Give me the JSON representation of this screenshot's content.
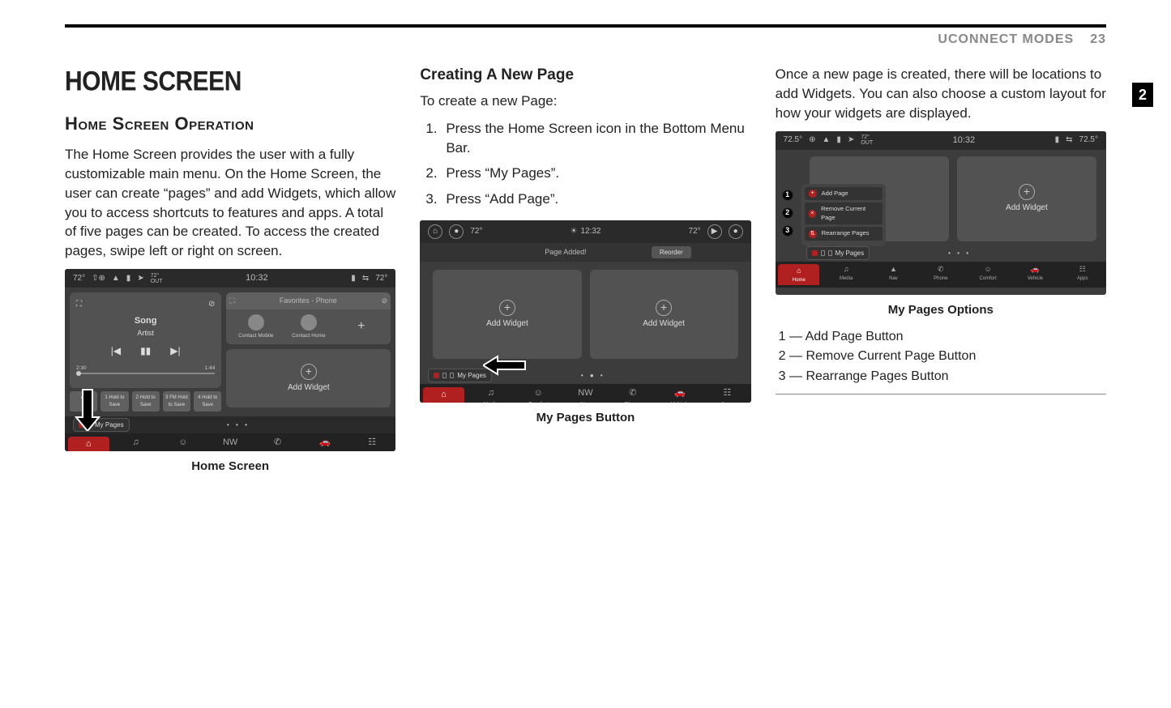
{
  "page": {
    "header_section": "UCONNECT MODES",
    "page_number": "23",
    "tab_number": "2"
  },
  "col1": {
    "title": "HOME SCREEN",
    "subtitle": "Home Screen Operation",
    "para": "The Home Screen provides the user with a fully customizable main menu. On the Home Screen, the user can create “pages” and add Widgets, which allow you to access shortcuts to features and apps. A total of five pages can be created. To access the created pages, swipe left or right on screen.",
    "caption": "Home Screen"
  },
  "col2": {
    "subhead": "Creating A New Page",
    "intro": "To create a new Page:",
    "steps": [
      "Press the Home Screen icon in the Bottom Menu Bar.",
      "Press “My Pages”.",
      "Press “Add Page”."
    ],
    "caption": "My Pages Button"
  },
  "col3": {
    "para": "Once a new page is created, there will be locations to add Widgets. You can also choose a custom layout for how your widgets are displayed.",
    "caption": "My Pages Options",
    "legend": [
      "1 — Add Page Button",
      "2 — Remove Current Page Button",
      "3 — Rearrange Pages Button"
    ]
  },
  "screenshot_common": {
    "temp_left": "72°",
    "temp_right": "72°",
    "temp_out_label": "72°\nOUT",
    "clock": "10:32",
    "clock2": "12:32",
    "add_widget": "Add Widget",
    "my_pages": "My Pages",
    "menu": [
      {
        "icon": "⌂",
        "label": "Home"
      },
      {
        "icon": "♫",
        "label": "Media"
      },
      {
        "icon": "☺",
        "label": "Comfort"
      },
      {
        "icon": "NW",
        "label": "Nav"
      },
      {
        "icon": "✆",
        "label": "Phone"
      },
      {
        "icon": "🚗",
        "label": "Vehicle"
      },
      {
        "icon": "☷",
        "label": "Apps"
      }
    ]
  },
  "ss1": {
    "song": "Song",
    "artist": "Artist",
    "preset_all": "All",
    "presets": [
      "1 Hold to Save",
      "2 Hold to Save",
      "3 FM Hold to Save",
      "4 Hold to Save"
    ],
    "time_l": "2:30",
    "time_r": "1:44",
    "fav_header": "Favorites - Phone",
    "contact1": "Contact Mobile",
    "contact2": "Contact Home"
  },
  "ss2": {
    "page_added": "Page Added!",
    "reorder": "Reorder"
  },
  "ss3": {
    "temp_left": "72.5°",
    "temp_right": "72.5°",
    "popup": [
      "Add Page",
      "Remove Current Page",
      "Rearrange Pages"
    ]
  }
}
